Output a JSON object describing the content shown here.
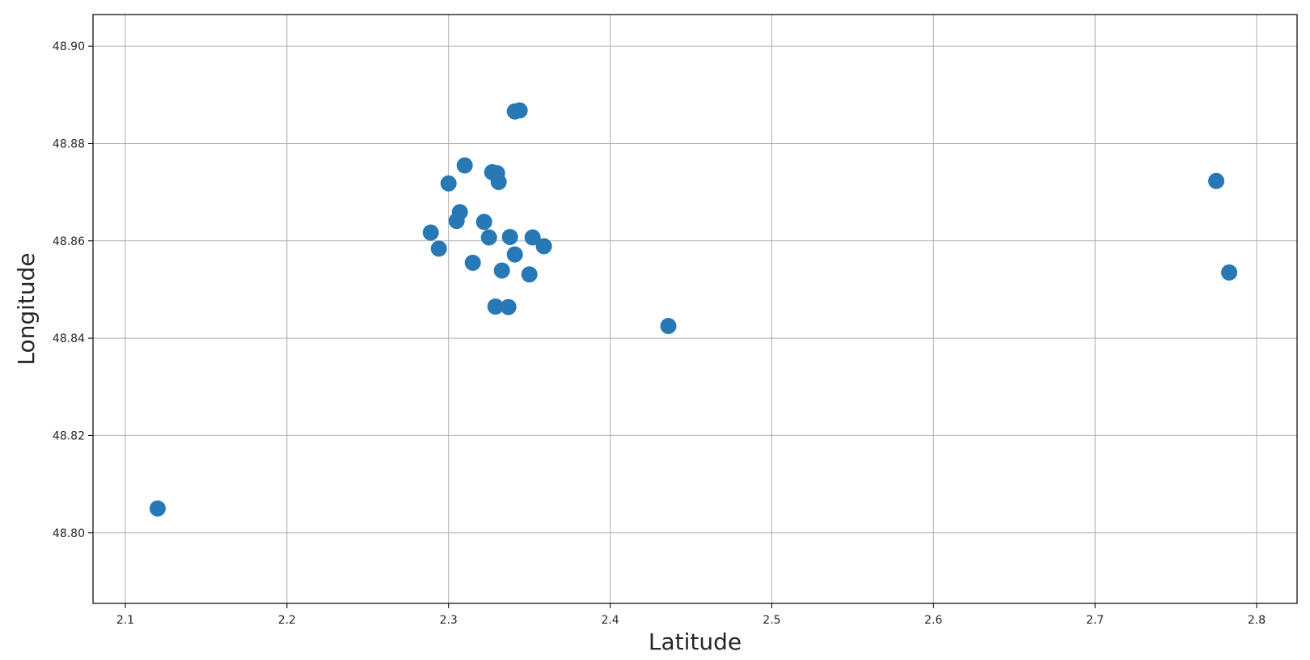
{
  "chart_data": {
    "type": "scatter",
    "title": "",
    "xlabel": "Latitude",
    "ylabel": "Longitude",
    "xlim": [
      2.08,
      2.825
    ],
    "ylim": [
      48.7855,
      48.9065
    ],
    "grid": true,
    "x_ticks": [
      2.1,
      2.2,
      2.3,
      2.4,
      2.5,
      2.6,
      2.7,
      2.8
    ],
    "x_tick_labels": [
      "2.1",
      "2.2",
      "2.3",
      "2.4",
      "2.5",
      "2.6",
      "2.7",
      "2.8"
    ],
    "y_ticks": [
      48.8,
      48.82,
      48.84,
      48.86,
      48.88,
      48.9
    ],
    "y_tick_labels": [
      "48.80",
      "48.82",
      "48.84",
      "48.86",
      "48.88",
      "48.90"
    ],
    "color": "#2878b5",
    "series": [
      {
        "points": [
          [
            2.12,
            48.805
          ],
          [
            2.289,
            48.8617
          ],
          [
            2.294,
            48.8584
          ],
          [
            2.3,
            48.8718
          ],
          [
            2.305,
            48.8641
          ],
          [
            2.307,
            48.8659
          ],
          [
            2.31,
            48.8755
          ],
          [
            2.315,
            48.8555
          ],
          [
            2.322,
            48.8639
          ],
          [
            2.325,
            48.8607
          ],
          [
            2.327,
            48.8741
          ],
          [
            2.329,
            48.8465
          ],
          [
            2.33,
            48.8739
          ],
          [
            2.331,
            48.8721
          ],
          [
            2.333,
            48.8539
          ],
          [
            2.337,
            48.8464
          ],
          [
            2.338,
            48.8608
          ],
          [
            2.341,
            48.8866
          ],
          [
            2.341,
            48.8572
          ],
          [
            2.344,
            48.8868
          ],
          [
            2.35,
            48.8531
          ],
          [
            2.352,
            48.8607
          ],
          [
            2.359,
            48.8589
          ],
          [
            2.436,
            48.8425
          ],
          [
            2.775,
            48.8723
          ],
          [
            2.783,
            48.8535
          ]
        ]
      }
    ]
  }
}
